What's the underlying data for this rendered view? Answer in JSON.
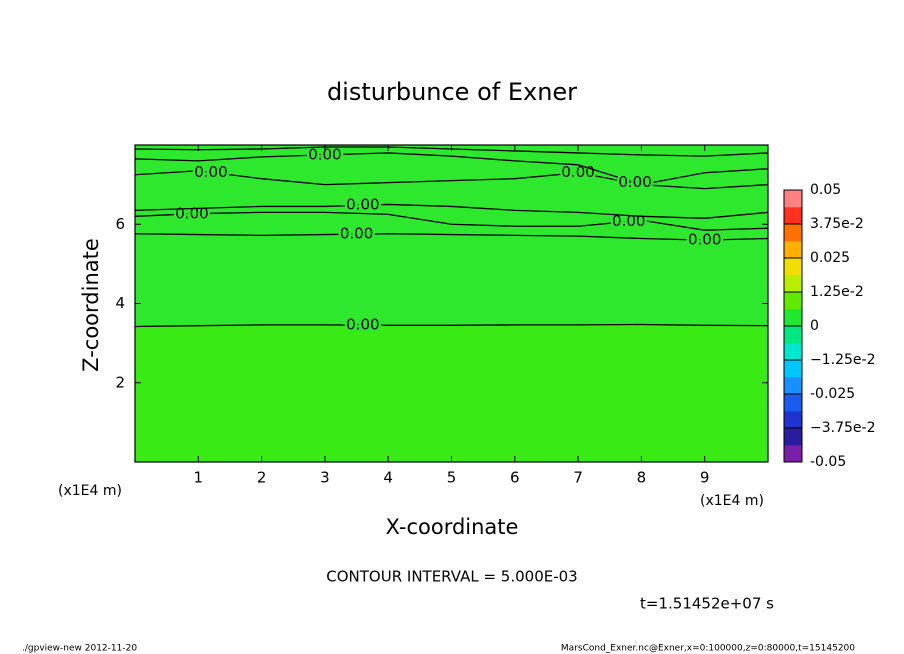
{
  "chart_data": {
    "type": "contour",
    "title": "disturbunce of Exner",
    "xlabel": "X-coordinate",
    "ylabel": "Z-coordinate",
    "x_unit": "(x1E4 m)",
    "xlim": [
      0,
      10
    ],
    "ylim": [
      0,
      8
    ],
    "xticks": [
      1,
      2,
      3,
      4,
      5,
      6,
      7,
      8,
      9
    ],
    "yticks": [
      2,
      4,
      6
    ],
    "field_color": "#2ee82e",
    "lower_color": "#3aea14",
    "line_color": "#000000",
    "levels": [
      {
        "value": 0,
        "label": "0.00"
      }
    ],
    "contours": [
      {
        "level": 0,
        "label_x": [
          3.6
        ],
        "x": [
          0,
          1,
          2,
          3,
          4,
          5,
          6,
          7,
          8,
          9,
          10
        ],
        "y": [
          3.42,
          3.44,
          3.46,
          3.46,
          3.45,
          3.45,
          3.46,
          3.46,
          3.47,
          3.45,
          3.44
        ]
      },
      {
        "level": 0,
        "label_x": [
          3.5,
          9.0
        ],
        "x": [
          0,
          1,
          2,
          3,
          4,
          5,
          6,
          7,
          8,
          9,
          10
        ],
        "y": [
          5.76,
          5.74,
          5.72,
          5.74,
          5.76,
          5.74,
          5.72,
          5.7,
          5.64,
          5.6,
          5.64
        ]
      },
      {
        "level": 0,
        "label_x": [
          0.9,
          7.8
        ],
        "x": [
          0,
          1,
          2,
          3,
          4,
          5,
          6,
          7,
          8,
          9,
          10
        ],
        "y": [
          6.2,
          6.27,
          6.3,
          6.3,
          6.25,
          6.0,
          5.95,
          5.95,
          6.1,
          5.85,
          5.9
        ]
      },
      {
        "level": 0,
        "label_x": [
          3.6
        ],
        "x": [
          0,
          1,
          2,
          3,
          4,
          5,
          6,
          7,
          8,
          9,
          10
        ],
        "y": [
          6.35,
          6.4,
          6.45,
          6.45,
          6.5,
          6.45,
          6.35,
          6.3,
          6.2,
          6.15,
          6.3
        ]
      },
      {
        "level": 0,
        "label_x": [
          1.2,
          7.0
        ],
        "x": [
          0,
          1,
          2,
          3,
          4,
          5,
          6,
          7,
          8,
          9,
          10
        ],
        "y": [
          7.25,
          7.35,
          7.15,
          7.0,
          7.05,
          7.1,
          7.15,
          7.3,
          7.0,
          6.9,
          7.0
        ]
      },
      {
        "level": 0,
        "label_x": [
          3.0,
          7.9
        ],
        "x": [
          0,
          1,
          2,
          3,
          4,
          5,
          6,
          7,
          8,
          9,
          10
        ],
        "y": [
          7.65,
          7.6,
          7.7,
          7.75,
          7.8,
          7.72,
          7.6,
          7.5,
          7.0,
          7.3,
          7.4
        ]
      },
      {
        "level": 0,
        "label_x": [],
        "x": [
          0,
          1,
          2,
          3,
          4,
          5,
          6,
          7,
          8,
          9,
          10
        ],
        "y": [
          7.9,
          7.88,
          7.9,
          7.95,
          7.95,
          7.9,
          7.85,
          7.8,
          7.75,
          7.72,
          7.8
        ]
      }
    ],
    "colorbar": {
      "lim": [
        -0.05,
        0.05
      ],
      "ticks": [
        -0.05,
        {
          "value": -0.0375,
          "label": "−3.75e-2"
        },
        -0.025,
        {
          "value": -0.0125,
          "label": "−1.25e-2"
        },
        0,
        {
          "value": 0.0125,
          "label": "1.25e-2"
        },
        0.025,
        {
          "value": 0.0375,
          "label": "3.75e-2"
        },
        0.05
      ],
      "colors": [
        "#7a1fa8",
        "#2a1ca0",
        "#1e34d0",
        "#1a5cf0",
        "#1a90ff",
        "#00c8ff",
        "#00e8d0",
        "#00e880",
        "#20e830",
        "#60ea00",
        "#b8ee00",
        "#f0e000",
        "#ffb000",
        "#ff7000",
        "#ff3020",
        "#ff8080"
      ]
    },
    "contour_interval": "CONTOUR INTERVAL = 5.000E-03",
    "time_label": "t=1.51452e+07 s",
    "footer_left": "./gpview-new  2012-11-20",
    "footer_right": "MarsCond_Exner.nc@Exner,x=0:100000,z=0:80000,t=15145200"
  }
}
